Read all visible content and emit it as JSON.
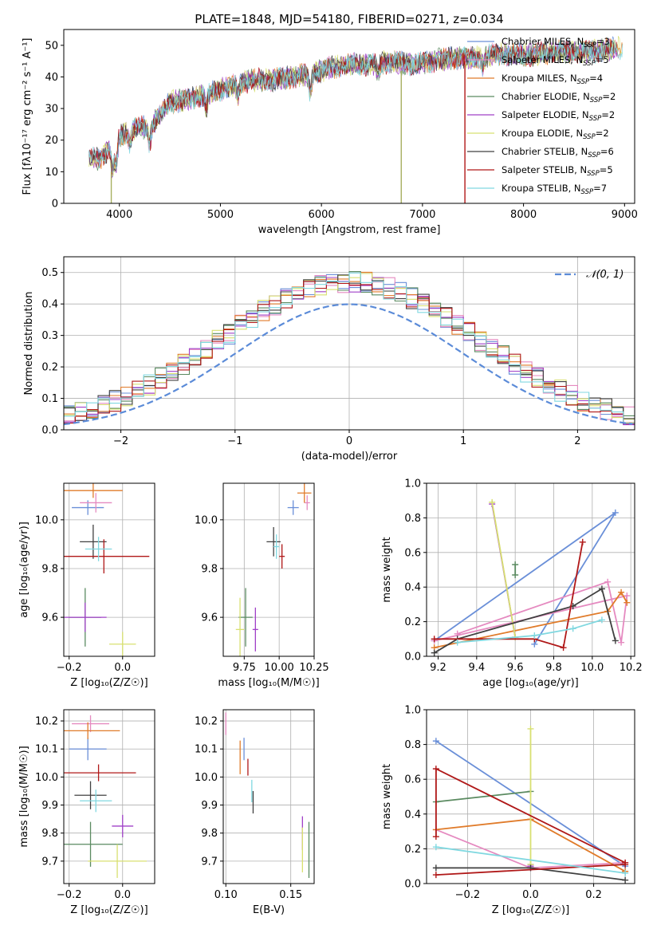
{
  "colors": {
    "chabrier_miles": "#6a8fd8",
    "salpeter_miles": "#e58ac0",
    "kroupa_miles": "#e07b2a",
    "chabrier_elodie": "#5a8a60",
    "salpeter_elodie": "#a040c8",
    "kroupa_elodie": "#d8e070",
    "chabrier_stelib": "#404040",
    "salpeter_stelib": "#b01818",
    "kroupa_stelib": "#80d8e0",
    "normal_curve": "#5b8bd8"
  },
  "chart_data": [
    {
      "id": "spectrum",
      "type": "line",
      "title": "PLATE=1848, MJD=54180, FIBERID=0271, z=0.034",
      "xlabel": "wavelength [Angstrom, rest frame]",
      "ylabel": "Flux [fλ10⁻¹⁷ erg cm⁻² s⁻¹ A⁻¹]",
      "xlim": [
        3450,
        9100
      ],
      "ylim": [
        0,
        55
      ],
      "xticks": [
        "4000",
        "5000",
        "6000",
        "7000",
        "8000",
        "9000"
      ],
      "yticks": [
        "0",
        "10",
        "20",
        "30",
        "40",
        "50"
      ],
      "grid": false,
      "legend_position": "top-right",
      "series": [
        {
          "name": "Chabrier MILES, NSSP=3",
          "label_main": "Chabrier MILES, N",
          "sub": "SSP",
          "label_tail": "=3"
        },
        {
          "name": "Salpeter MILES, NSSP=5",
          "label_main": "Salpeter MILES, N",
          "sub": "SSP",
          "label_tail": "=5"
        },
        {
          "name": "Kroupa MILES, NSSP=4",
          "label_main": "Kroupa MILES, N",
          "sub": "SSP",
          "label_tail": "=4"
        },
        {
          "name": "Chabrier ELODIE, NSSP=2",
          "label_main": "Chabrier ELODIE, N",
          "sub": "SSP",
          "label_tail": "=2"
        },
        {
          "name": "Salpeter ELODIE, NSSP=2",
          "label_main": "Salpeter ELODIE, N",
          "sub": "SSP",
          "label_tail": "=2"
        },
        {
          "name": "Kroupa ELODIE, NSSP=2",
          "label_main": "Kroupa ELODIE, N",
          "sub": "SSP",
          "label_tail": "=2"
        },
        {
          "name": "Chabrier STELIB, NSSP=6",
          "label_main": "Chabrier STELIB, N",
          "sub": "SSP",
          "label_tail": "=6"
        },
        {
          "name": "Salpeter STELIB, NSSP=5",
          "label_main": "Salpeter STELIB, N",
          "sub": "SSP",
          "label_tail": "=5"
        },
        {
          "name": "Kroupa STELIB, NSSP=7",
          "label_main": "Kroupa STELIB, N",
          "sub": "SSP",
          "label_tail": "=7"
        }
      ],
      "continuum": {
        "x": [
          3700,
          3800,
          3900,
          4000,
          4100,
          4200,
          4300,
          4400,
          4500,
          4700,
          4900,
          5100,
          5300,
          5500,
          5700,
          5900,
          6100,
          6300,
          6500,
          6700,
          6900,
          7100,
          7300,
          7500,
          7700,
          7900,
          8100,
          8300,
          8500,
          8700,
          8900
        ],
        "y": [
          15,
          14,
          17,
          21,
          23,
          24,
          24,
          28,
          32,
          33,
          35,
          37,
          39,
          39,
          40,
          41,
          43,
          44,
          44,
          45,
          44,
          45,
          46,
          46,
          47,
          47,
          47,
          48,
          48,
          48,
          49
        ]
      },
      "dropouts": [
        {
          "x": 3920,
          "y_from": 10,
          "y_to": 0
        },
        {
          "x": 6790,
          "y_from": 42,
          "y_to": 0
        },
        {
          "x": 7420,
          "y_from": 45,
          "y_to": 0
        }
      ]
    },
    {
      "id": "residuals",
      "type": "line",
      "xlabel": "(data-model)/error",
      "ylabel": "Normed distribution",
      "xlim": [
        -2.5,
        2.5
      ],
      "ylim": [
        0,
        0.55
      ],
      "xticks": [
        "−2",
        "−1",
        "0",
        "1",
        "2"
      ],
      "yticks": [
        "0.0",
        "0.1",
        "0.2",
        "0.3",
        "0.4",
        "0.5"
      ],
      "grid": true,
      "legend_position": "top-right",
      "curve_label": "𝒩(0, 1)",
      "bin_width": 0.1
    },
    {
      "id": "age_vs_z",
      "type": "scatter",
      "xlabel": "Z [log₁₀(Z/Z☉)]",
      "ylabel": "age [log₁₀(age/yr)]",
      "xlim": [
        -0.22,
        0.12
      ],
      "ylim": [
        9.44,
        10.15
      ],
      "xticks": [
        "−0.2",
        "0.0"
      ],
      "yticks": [
        "9.6",
        "9.8",
        "10.0"
      ],
      "points": [
        {
          "x": -0.13,
          "y": 10.05,
          "xerr": 0.06,
          "yerr": 0.03,
          "color": "chabrier_miles"
        },
        {
          "x": -0.1,
          "y": 10.07,
          "xerr": 0.06,
          "yerr": 0.04,
          "color": "salpeter_miles"
        },
        {
          "x": -0.11,
          "y": 10.12,
          "xerr": 0.11,
          "yerr": 0.03,
          "color": "kroupa_miles"
        },
        {
          "x": -0.14,
          "y": 9.6,
          "xerr": 0.06,
          "yerr": 0.12,
          "color": "chabrier_elodie"
        },
        {
          "x": -0.14,
          "y": 9.6,
          "xerr": 0.08,
          "yerr": 0.06,
          "color": "salpeter_elodie"
        },
        {
          "x": 0.0,
          "y": 9.49,
          "xerr": 0.05,
          "yerr": 0.05,
          "color": "kroupa_elodie"
        },
        {
          "x": -0.11,
          "y": 9.91,
          "xerr": 0.05,
          "yerr": 0.07,
          "color": "chabrier_stelib"
        },
        {
          "x": -0.07,
          "y": 9.85,
          "xerr": 0.17,
          "yerr": 0.07,
          "color": "salpeter_stelib"
        },
        {
          "x": -0.09,
          "y": 9.88,
          "xerr": 0.05,
          "yerr": 0.05,
          "color": "kroupa_stelib"
        }
      ]
    },
    {
      "id": "age_vs_mass",
      "type": "scatter",
      "xlabel": "mass [log₁₀(M/M☉)]",
      "ylabel": "",
      "xlim": [
        9.6,
        10.25
      ],
      "ylim": [
        9.44,
        10.15
      ],
      "xticks": [
        "9.75",
        "10.00",
        "10.25"
      ],
      "yticks": [
        "9.6",
        "9.8",
        "10.0"
      ],
      "points": [
        {
          "x": 10.1,
          "y": 10.05,
          "xerr": 0.04,
          "yerr": 0.03,
          "color": "chabrier_miles"
        },
        {
          "x": 10.2,
          "y": 10.07,
          "xerr": 0.02,
          "yerr": 0.03,
          "color": "salpeter_miles"
        },
        {
          "x": 10.18,
          "y": 10.11,
          "xerr": 0.05,
          "yerr": 0.04,
          "color": "kroupa_miles"
        },
        {
          "x": 9.76,
          "y": 9.6,
          "xerr": 0.05,
          "yerr": 0.12,
          "color": "chabrier_elodie"
        },
        {
          "x": 9.83,
          "y": 9.55,
          "xerr": 0.02,
          "yerr": 0.09,
          "color": "salpeter_elodie"
        },
        {
          "x": 9.72,
          "y": 9.55,
          "xerr": 0.03,
          "yerr": 0.13,
          "color": "kroupa_elodie"
        },
        {
          "x": 9.96,
          "y": 9.91,
          "xerr": 0.05,
          "yerr": 0.06,
          "color": "chabrier_stelib"
        },
        {
          "x": 10.02,
          "y": 9.85,
          "xerr": 0.02,
          "yerr": 0.05,
          "color": "salpeter_stelib"
        },
        {
          "x": 9.98,
          "y": 9.89,
          "xerr": 0.02,
          "yerr": 0.05,
          "color": "kroupa_stelib"
        }
      ]
    },
    {
      "id": "weight_vs_age",
      "type": "line",
      "xlabel": "age [log₁₀(age/yr)]",
      "ylabel": "mass weight",
      "xlim": [
        9.14,
        10.22
      ],
      "ylim": [
        0,
        1
      ],
      "xticks": [
        "9.2",
        "9.4",
        "9.6",
        "9.8",
        "10.0",
        "10.2"
      ],
      "yticks": [
        "0.0",
        "0.2",
        "0.4",
        "0.6",
        "0.8",
        "1.0"
      ],
      "grid": true,
      "series": [
        {
          "color": "chabrier_miles",
          "x": [
            9.7,
            10.12,
            9.18
          ],
          "y": [
            0.07,
            0.83,
            0.09
          ]
        },
        {
          "color": "salpeter_miles",
          "x": [
            9.3,
            10.08,
            10.15,
            10.18,
            9.18
          ],
          "y": [
            0.13,
            0.43,
            0.08,
            0.35,
            0.09
          ]
        },
        {
          "color": "kroupa_miles",
          "x": [
            9.18,
            10.08,
            10.15,
            10.18
          ],
          "y": [
            0.05,
            0.26,
            0.37,
            0.31
          ]
        },
        {
          "color": "chabrier_elodie",
          "x": [
            9.6,
            9.6
          ],
          "y": [
            0.53,
            0.47
          ]
        },
        {
          "color": "salpeter_elodie",
          "x": [
            9.48,
            9.6
          ],
          "y": [
            0.88,
            0.11
          ]
        },
        {
          "color": "kroupa_elodie",
          "x": [
            9.48,
            9.6
          ],
          "y": [
            0.89,
            0.11
          ]
        },
        {
          "color": "chabrier_stelib",
          "x": [
            9.18,
            9.3,
            9.9,
            10.05,
            10.12
          ],
          "y": [
            0.02,
            0.1,
            0.29,
            0.39,
            0.09
          ]
        },
        {
          "color": "salpeter_stelib",
          "x": [
            9.18,
            9.7,
            9.85,
            9.95
          ],
          "y": [
            0.1,
            0.1,
            0.05,
            0.66
          ]
        },
        {
          "color": "kroupa_stelib",
          "x": [
            9.3,
            9.7,
            9.9,
            10.05
          ],
          "y": [
            0.08,
            0.12,
            0.16,
            0.21
          ]
        }
      ]
    },
    {
      "id": "mass_vs_z",
      "type": "scatter",
      "xlabel": "Z [log₁₀(Z/Z☉)]",
      "ylabel": "mass [log₁₀(M/M☉)]",
      "xlim": [
        -0.22,
        0.12
      ],
      "ylim": [
        9.62,
        10.24
      ],
      "xticks": [
        "−0.2",
        "0.0"
      ],
      "yticks": [
        "9.7",
        "9.8",
        "9.9",
        "10.0",
        "10.1",
        "10.2"
      ],
      "points": [
        {
          "x": -0.13,
          "y": 10.1,
          "xerr": 0.07,
          "yerr": 0.04,
          "color": "chabrier_miles"
        },
        {
          "x": -0.12,
          "y": 10.19,
          "xerr": 0.07,
          "yerr": 0.03,
          "color": "salpeter_miles"
        },
        {
          "x": -0.13,
          "y": 10.165,
          "xerr": 0.12,
          "yerr": 0.03,
          "color": "kroupa_miles"
        },
        {
          "x": -0.12,
          "y": 9.76,
          "xerr": 0.12,
          "yerr": 0.08,
          "color": "chabrier_elodie"
        },
        {
          "x": 0.0,
          "y": 9.825,
          "xerr": 0.04,
          "yerr": 0.04,
          "color": "salpeter_elodie"
        },
        {
          "x": -0.02,
          "y": 9.7,
          "xerr": 0.11,
          "yerr": 0.06,
          "color": "kroupa_elodie"
        },
        {
          "x": -0.12,
          "y": 9.935,
          "xerr": 0.06,
          "yerr": 0.05,
          "color": "chabrier_stelib"
        },
        {
          "x": -0.09,
          "y": 10.015,
          "xerr": 0.14,
          "yerr": 0.03,
          "color": "salpeter_stelib"
        },
        {
          "x": -0.1,
          "y": 9.915,
          "xerr": 0.06,
          "yerr": 0.04,
          "color": "kroupa_stelib"
        }
      ]
    },
    {
      "id": "mass_vs_ebv",
      "type": "scatter",
      "xlabel": "E(B-V)",
      "ylabel": "",
      "xlim": [
        0.098,
        0.168
      ],
      "ylim": [
        9.62,
        10.24
      ],
      "xticks": [
        "0.10",
        "0.15"
      ],
      "yticks": [
        "9.7",
        "9.8",
        "9.9",
        "10.0",
        "10.1",
        "10.2"
      ],
      "points": [
        {
          "x": 0.114,
          "y": 10.1,
          "xerr": 0.0,
          "yerr": 0.04,
          "color": "chabrier_miles"
        },
        {
          "x": 0.1,
          "y": 10.19,
          "xerr": 0.0,
          "yerr": 0.04,
          "color": "salpeter_miles"
        },
        {
          "x": 0.111,
          "y": 10.07,
          "xerr": 0.0,
          "yerr": 0.06,
          "color": "kroupa_miles"
        },
        {
          "x": 0.164,
          "y": 9.74,
          "xerr": 0.0,
          "yerr": 0.1,
          "color": "chabrier_elodie"
        },
        {
          "x": 0.159,
          "y": 9.8,
          "xerr": 0.0,
          "yerr": 0.06,
          "color": "salpeter_elodie"
        },
        {
          "x": 0.159,
          "y": 9.74,
          "xerr": 0.0,
          "yerr": 0.08,
          "color": "kroupa_elodie"
        },
        {
          "x": 0.121,
          "y": 9.91,
          "xerr": 0.0,
          "yerr": 0.04,
          "color": "chabrier_stelib"
        },
        {
          "x": 0.117,
          "y": 10.035,
          "xerr": 0.0,
          "yerr": 0.03,
          "color": "salpeter_stelib"
        },
        {
          "x": 0.12,
          "y": 9.95,
          "xerr": 0.0,
          "yerr": 0.04,
          "color": "kroupa_stelib"
        }
      ]
    },
    {
      "id": "weight_vs_z",
      "type": "line",
      "xlabel": "Z [log₁₀(Z/Z☉)]",
      "ylabel": "mass weight",
      "xlim": [
        -0.33,
        0.33
      ],
      "ylim": [
        0,
        1
      ],
      "xticks": [
        "−0.2",
        "0.0",
        "0.2"
      ],
      "yticks": [
        "0.0",
        "0.2",
        "0.4",
        "0.6",
        "0.8",
        "1.0"
      ],
      "grid": true,
      "series": [
        {
          "color": "chabrier_miles",
          "x": [
            -0.3,
            0.3
          ],
          "y": [
            0.82,
            0.1
          ]
        },
        {
          "color": "salpeter_miles",
          "x": [
            -0.3,
            0.0,
            0.3
          ],
          "y": [
            0.31,
            0.09,
            0.12
          ]
        },
        {
          "color": "kroupa_miles",
          "x": [
            -0.3,
            0.0,
            0.3
          ],
          "y": [
            0.31,
            0.37,
            0.07
          ]
        },
        {
          "color": "chabrier_elodie",
          "x": [
            -0.3,
            0.0
          ],
          "y": [
            0.47,
            0.53
          ]
        },
        {
          "color": "salpeter_elodie",
          "x": [
            0.0,
            0.0
          ],
          "y": [
            0.11,
            0.1
          ]
        },
        {
          "color": "kroupa_elodie",
          "x": [
            0.0,
            0.0
          ],
          "y": [
            0.89,
            0.11
          ]
        },
        {
          "color": "chabrier_stelib",
          "x": [
            -0.3,
            0.0,
            0.3
          ],
          "y": [
            0.09,
            0.09,
            0.02
          ]
        },
        {
          "color": "salpeter_stelib",
          "x": [
            -0.3,
            0.3,
            0.3,
            -0.3,
            -0.3
          ],
          "y": [
            0.05,
            0.11,
            0.12,
            0.66,
            0.27
          ]
        },
        {
          "color": "kroupa_stelib",
          "x": [
            -0.3,
            0.3
          ],
          "y": [
            0.21,
            0.06
          ]
        }
      ]
    }
  ]
}
